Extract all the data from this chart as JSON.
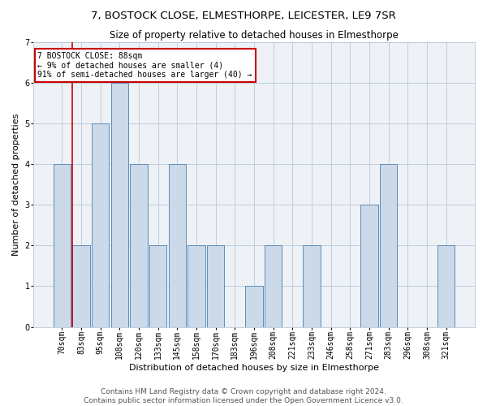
{
  "title": "7, BOSTOCK CLOSE, ELMESTHORPE, LEICESTER, LE9 7SR",
  "subtitle": "Size of property relative to detached houses in Elmesthorpe",
  "xlabel": "Distribution of detached houses by size in Elmesthorpe",
  "ylabel": "Number of detached properties",
  "categories": [
    "70sqm",
    "83sqm",
    "95sqm",
    "108sqm",
    "120sqm",
    "133sqm",
    "145sqm",
    "158sqm",
    "170sqm",
    "183sqm",
    "196sqm",
    "208sqm",
    "221sqm",
    "233sqm",
    "246sqm",
    "258sqm",
    "271sqm",
    "283sqm",
    "296sqm",
    "308sqm",
    "321sqm"
  ],
  "values": [
    4,
    2,
    5,
    6,
    4,
    2,
    4,
    2,
    2,
    0,
    1,
    2,
    0,
    2,
    0,
    0,
    3,
    4,
    0,
    0,
    2
  ],
  "bar_color": "#ccd9e8",
  "bar_edge_color": "#5b8db8",
  "vline_index": 1,
  "vline_color": "#cc0000",
  "ylim": [
    0,
    7
  ],
  "yticks": [
    0,
    1,
    2,
    3,
    4,
    5,
    6,
    7
  ],
  "annotation_title": "7 BOSTOCK CLOSE: 88sqm",
  "annotation_line1": "← 9% of detached houses are smaller (4)",
  "annotation_line2": "91% of semi-detached houses are larger (40) →",
  "annotation_box_color": "#cc0000",
  "footer1": "Contains HM Land Registry data © Crown copyright and database right 2024.",
  "footer2": "Contains public sector information licensed under the Open Government Licence v3.0.",
  "bg_color": "#eef2f7",
  "grid_color": "#b8c8d8",
  "title_fontsize": 9.5,
  "subtitle_fontsize": 8.5,
  "ylabel_fontsize": 8,
  "xlabel_fontsize": 8,
  "tick_fontsize": 7,
  "annotation_fontsize": 7,
  "footer_fontsize": 6.5
}
